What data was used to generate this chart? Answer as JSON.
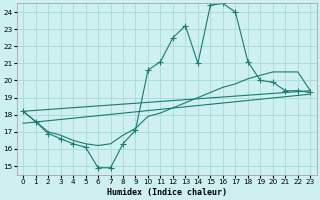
{
  "xlabel": "Humidex (Indice chaleur)",
  "bg_color": "#cef0f0",
  "grid_color": "#aadddd",
  "line_color": "#1a7a6e",
  "xlim": [
    -0.5,
    23.5
  ],
  "ylim": [
    14.5,
    24.5
  ],
  "xticks": [
    0,
    1,
    2,
    3,
    4,
    5,
    6,
    7,
    8,
    9,
    10,
    11,
    12,
    13,
    14,
    15,
    16,
    17,
    18,
    19,
    20,
    21,
    22,
    23
  ],
  "yticks": [
    15,
    16,
    17,
    18,
    19,
    20,
    21,
    22,
    23,
    24
  ],
  "curve_main_x": [
    0,
    1,
    2,
    3,
    4,
    5,
    6,
    7,
    8,
    9,
    10,
    11,
    12,
    13,
    14,
    15,
    16,
    17,
    18,
    19,
    20,
    21,
    22,
    23
  ],
  "curve_main_y": [
    18.2,
    17.6,
    16.9,
    16.6,
    16.3,
    16.1,
    14.9,
    14.9,
    16.3,
    17.1,
    20.6,
    21.1,
    22.5,
    23.2,
    21.0,
    24.4,
    24.5,
    24.0,
    21.1,
    20.0,
    19.9,
    19.4,
    19.4,
    19.3
  ],
  "curve_smooth_x": [
    0,
    1,
    2,
    3,
    4,
    5,
    6,
    7,
    8,
    9,
    10,
    11,
    12,
    13,
    14,
    15,
    16,
    17,
    18,
    19,
    20,
    21,
    22,
    23
  ],
  "curve_smooth_y": [
    18.2,
    17.6,
    17.0,
    16.8,
    16.5,
    16.3,
    16.2,
    16.3,
    16.8,
    17.2,
    17.9,
    18.1,
    18.4,
    18.7,
    19.0,
    19.3,
    19.6,
    19.8,
    20.1,
    20.3,
    20.5,
    20.5,
    20.5,
    19.4
  ],
  "line1_x": [
    0,
    23
  ],
  "line1_y": [
    18.2,
    19.4
  ],
  "line2_x": [
    0,
    23
  ],
  "line2_y": [
    17.5,
    19.2
  ]
}
